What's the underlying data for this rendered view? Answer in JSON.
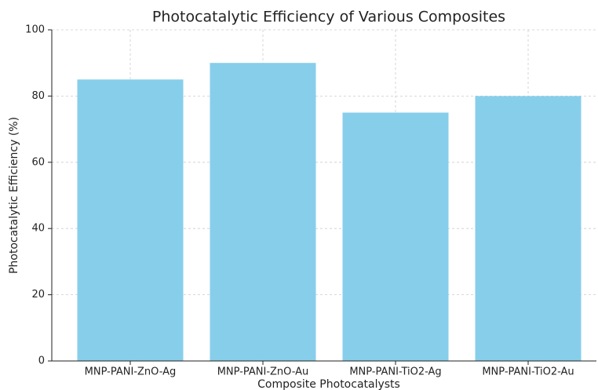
{
  "chart_data": {
    "type": "bar",
    "title": "Photocatalytic Efficiency of Various Composites",
    "x_label": "Composite Photocatalysts",
    "y_label": "Photocatalytic Efficiency (%)",
    "categories": [
      "MNP-PANI-ZnO-Ag",
      "MNP-PANI-ZnO-Au",
      "MNP-PANI-TiO2-Ag",
      "MNP-PANI-TiO2-Au"
    ],
    "values": [
      85,
      90,
      75,
      80
    ],
    "color": "#87ceeb",
    "ylim": [
      0,
      100
    ],
    "yticks": [
      0,
      20,
      40,
      60,
      80,
      100
    ],
    "grid": true
  }
}
